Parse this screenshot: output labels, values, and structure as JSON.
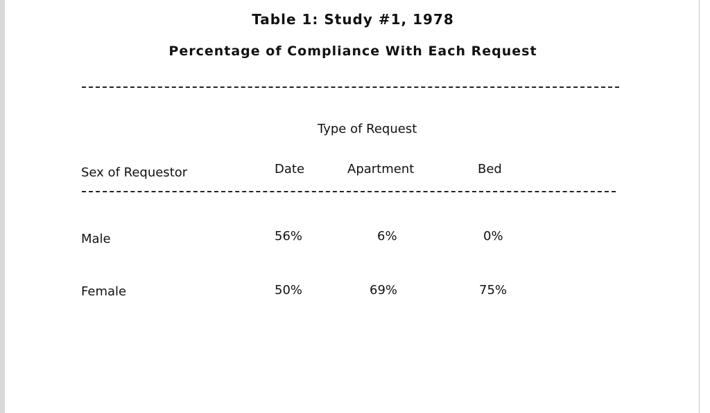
{
  "document": {
    "title": "Table 1:  Study #1, 1978",
    "subtitle": "Percentage of Compliance With Each Request"
  },
  "table": {
    "group_header": "Type of Request",
    "columns": [
      "Sex of Requestor",
      "Date",
      "Apartment",
      "Bed"
    ],
    "rows": [
      {
        "label": "Male",
        "date": "56%",
        "apartment": "6%",
        "bed": "0%"
      },
      {
        "label": "Female",
        "date": "50%",
        "apartment": "69%",
        "bed": "75%"
      }
    ]
  }
}
